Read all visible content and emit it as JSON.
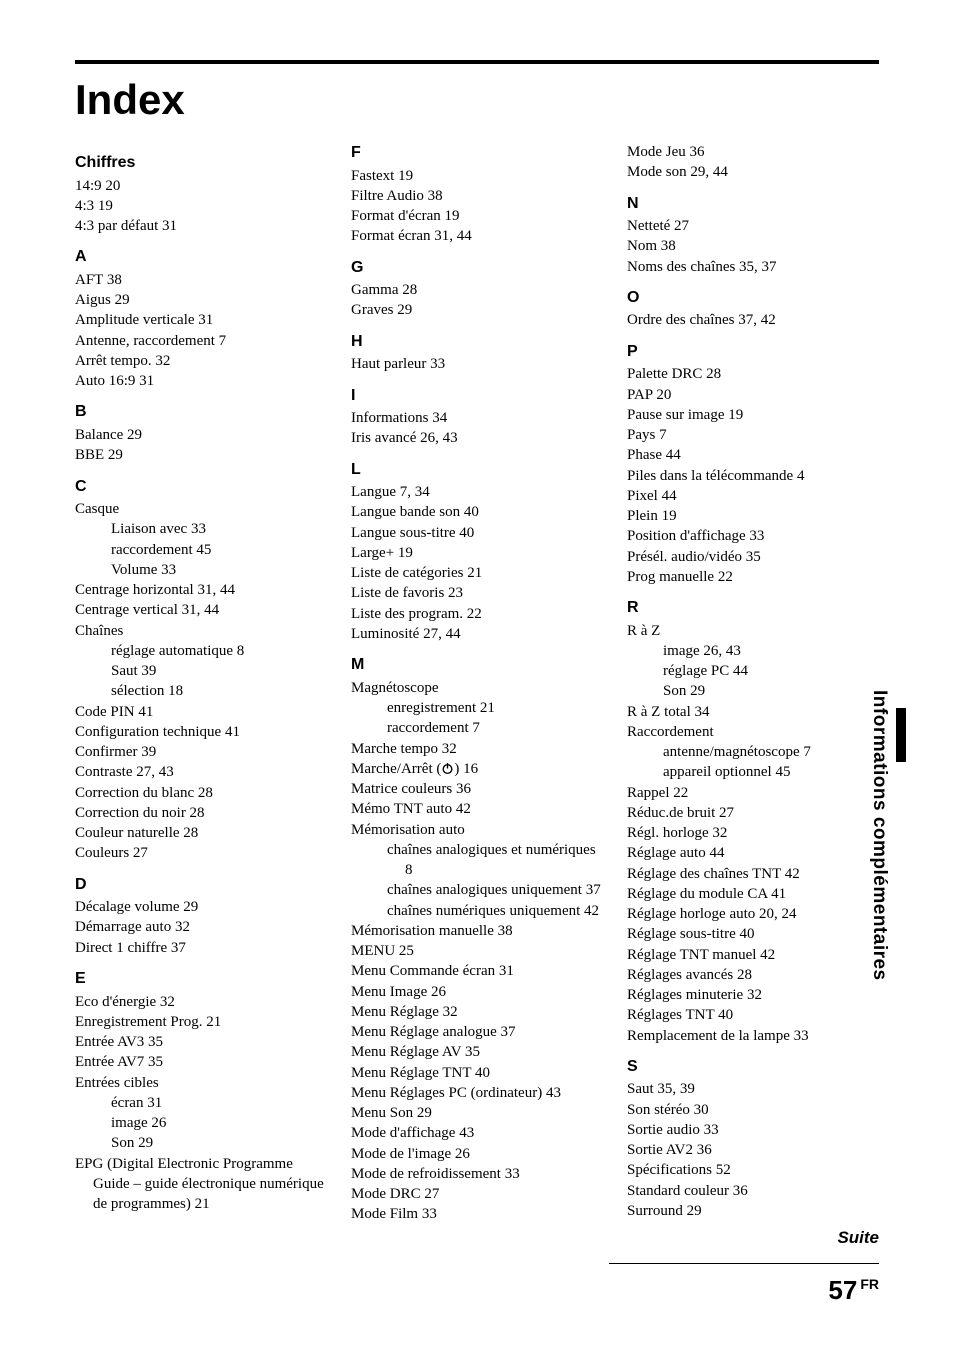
{
  "title": "Index",
  "side_label": "Informations complémentaires",
  "suite": "Suite",
  "page": "57",
  "page_region": "FR",
  "sections": [
    {
      "letter": "Chiffres",
      "entries": [
        {
          "t": "14:9 20"
        },
        {
          "t": "4:3 19"
        },
        {
          "t": "4:3 par défaut 31"
        }
      ]
    },
    {
      "letter": "A",
      "entries": [
        {
          "t": "AFT 38"
        },
        {
          "t": "Aigus 29"
        },
        {
          "t": "Amplitude verticale 31"
        },
        {
          "t": "Antenne, raccordement 7"
        },
        {
          "t": "Arrêt tempo. 32"
        },
        {
          "t": "Auto 16:9 31"
        }
      ]
    },
    {
      "letter": "B",
      "entries": [
        {
          "t": "Balance 29"
        },
        {
          "t": "BBE 29"
        }
      ]
    },
    {
      "letter": "C",
      "entries": [
        {
          "t": "Casque"
        },
        {
          "t": "Liaison avec 33",
          "i": 1
        },
        {
          "t": "raccordement 45",
          "i": 1
        },
        {
          "t": "Volume 33",
          "i": 1
        },
        {
          "t": "Centrage horizontal 31, 44"
        },
        {
          "t": "Centrage vertical 31, 44"
        },
        {
          "t": "Chaînes"
        },
        {
          "t": "réglage automatique 8",
          "i": 1
        },
        {
          "t": "Saut 39",
          "i": 1
        },
        {
          "t": "sélection 18",
          "i": 1
        },
        {
          "t": "Code PIN 41"
        },
        {
          "t": "Configuration technique 41"
        },
        {
          "t": "Confirmer 39"
        },
        {
          "t": "Contraste 27, 43"
        },
        {
          "t": "Correction du blanc 28"
        },
        {
          "t": "Correction du noir 28"
        },
        {
          "t": "Couleur naturelle 28"
        },
        {
          "t": "Couleurs 27"
        }
      ]
    },
    {
      "letter": "D",
      "entries": [
        {
          "t": "Décalage volume 29"
        },
        {
          "t": "Démarrage auto 32"
        },
        {
          "t": "Direct 1 chiffre 37"
        }
      ]
    },
    {
      "letter": "E",
      "entries": [
        {
          "t": "Eco d'énergie 32"
        },
        {
          "t": "Enregistrement Prog. 21"
        },
        {
          "t": "Entrée AV3 35"
        },
        {
          "t": "Entrée AV7 35"
        },
        {
          "t": "Entrées cibles"
        },
        {
          "t": "écran 31",
          "i": 1
        },
        {
          "t": "image 26",
          "i": 1
        },
        {
          "t": "Son 29",
          "i": 1
        },
        {
          "t": "EPG (Digital Electronic Programme Guide – guide électronique numérique de programmes) 21"
        }
      ]
    },
    {
      "letter": "F",
      "entries": [
        {
          "t": "Fastext 19"
        },
        {
          "t": "Filtre Audio 38"
        },
        {
          "t": "Format d'écran 19"
        },
        {
          "t": "Format écran 31, 44"
        }
      ]
    },
    {
      "letter": "G",
      "entries": [
        {
          "t": "Gamma 28"
        },
        {
          "t": "Graves 29"
        }
      ]
    },
    {
      "letter": "H",
      "entries": [
        {
          "t": "Haut parleur 33"
        }
      ]
    },
    {
      "letter": "I",
      "entries": [
        {
          "t": "Informations 34"
        },
        {
          "t": "Iris avancé 26, 43"
        }
      ]
    },
    {
      "letter": "L",
      "entries": [
        {
          "t": "Langue 7, 34"
        },
        {
          "t": "Langue bande son 40"
        },
        {
          "t": "Langue sous-titre 40"
        },
        {
          "t": "Large+ 19"
        },
        {
          "t": "Liste de catégories 21"
        },
        {
          "t": "Liste de favoris 23"
        },
        {
          "t": "Liste des program. 22"
        },
        {
          "t": "Luminosité 27, 44"
        }
      ]
    },
    {
      "letter": "M",
      "entries": [
        {
          "t": "Magnétoscope"
        },
        {
          "t": "enregistrement 21",
          "i": 1
        },
        {
          "t": "raccordement 7",
          "i": 1
        },
        {
          "t": "Marche tempo 32"
        },
        {
          "t": "Marche/Arrêt (⏻) 16",
          "power": true
        },
        {
          "t": "Matrice couleurs 36"
        },
        {
          "t": "Mémo TNT auto 42"
        },
        {
          "t": "Mémorisation auto"
        },
        {
          "t": "chaînes analogiques et numériques 8",
          "i": 1
        },
        {
          "t": "chaînes analogiques uniquement 37",
          "i": 1
        },
        {
          "t": "chaînes numériques uniquement 42",
          "i": 1
        },
        {
          "t": "Mémorisation manuelle 38"
        },
        {
          "t": "MENU 25"
        },
        {
          "t": "Menu Commande écran 31"
        },
        {
          "t": "Menu Image 26"
        },
        {
          "t": "Menu Réglage 32"
        },
        {
          "t": "Menu Réglage analogue 37"
        },
        {
          "t": "Menu Réglage AV 35"
        },
        {
          "t": "Menu Réglage TNT 40"
        },
        {
          "t": "Menu Réglages PC (ordinateur) 43"
        },
        {
          "t": "Menu Son 29"
        },
        {
          "t": "Mode d'affichage 43"
        },
        {
          "t": "Mode de l'image 26"
        },
        {
          "t": "Mode de refroidissement 33"
        },
        {
          "t": "Mode DRC 27"
        },
        {
          "t": "Mode Film 33"
        },
        {
          "t": "Mode Jeu 36"
        },
        {
          "t": "Mode son 29, 44"
        }
      ]
    },
    {
      "letter": "N",
      "entries": [
        {
          "t": "Netteté 27"
        },
        {
          "t": "Nom 38"
        },
        {
          "t": "Noms des chaînes 35, 37"
        }
      ]
    },
    {
      "letter": "O",
      "entries": [
        {
          "t": "Ordre des chaînes 37, 42"
        }
      ]
    },
    {
      "letter": "P",
      "entries": [
        {
          "t": "Palette DRC 28"
        },
        {
          "t": "PAP 20"
        },
        {
          "t": "Pause sur image 19"
        },
        {
          "t": "Pays 7"
        },
        {
          "t": "Phase 44"
        },
        {
          "t": "Piles dans la télécommande 4"
        },
        {
          "t": "Pixel 44"
        },
        {
          "t": "Plein 19"
        },
        {
          "t": "Position d'affichage 33"
        },
        {
          "t": "Présél. audio/vidéo 35"
        },
        {
          "t": "Prog manuelle 22"
        }
      ]
    },
    {
      "letter": "R",
      "entries": [
        {
          "t": "R à Z"
        },
        {
          "t": "image 26, 43",
          "i": 1
        },
        {
          "t": "réglage PC 44",
          "i": 1
        },
        {
          "t": "Son 29",
          "i": 1
        },
        {
          "t": "R à Z total 34"
        },
        {
          "t": "Raccordement"
        },
        {
          "t": "antenne/magnétoscope 7",
          "i": 1
        },
        {
          "t": "appareil optionnel 45",
          "i": 1
        },
        {
          "t": "Rappel 22"
        },
        {
          "t": "Réduc.de bruit 27"
        },
        {
          "t": "Régl. horloge 32"
        },
        {
          "t": "Réglage auto 44"
        },
        {
          "t": "Réglage des chaînes TNT 42"
        },
        {
          "t": "Réglage du module CA 41"
        },
        {
          "t": "Réglage horloge auto 20, 24"
        },
        {
          "t": "Réglage sous-titre 40"
        },
        {
          "t": "Réglage TNT manuel 42"
        },
        {
          "t": "Réglages avancés 28"
        },
        {
          "t": "Réglages minuterie 32"
        },
        {
          "t": "Réglages TNT 40"
        },
        {
          "t": "Remplacement de la lampe 33"
        }
      ]
    },
    {
      "letter": "S",
      "entries": [
        {
          "t": "Saut 35, 39"
        },
        {
          "t": "Son stéréo 30"
        },
        {
          "t": "Sortie audio 33"
        },
        {
          "t": "Sortie AV2 36"
        },
        {
          "t": "Spécifications 52"
        },
        {
          "t": "Standard couleur 36"
        },
        {
          "t": "Surround 29"
        }
      ]
    }
  ]
}
